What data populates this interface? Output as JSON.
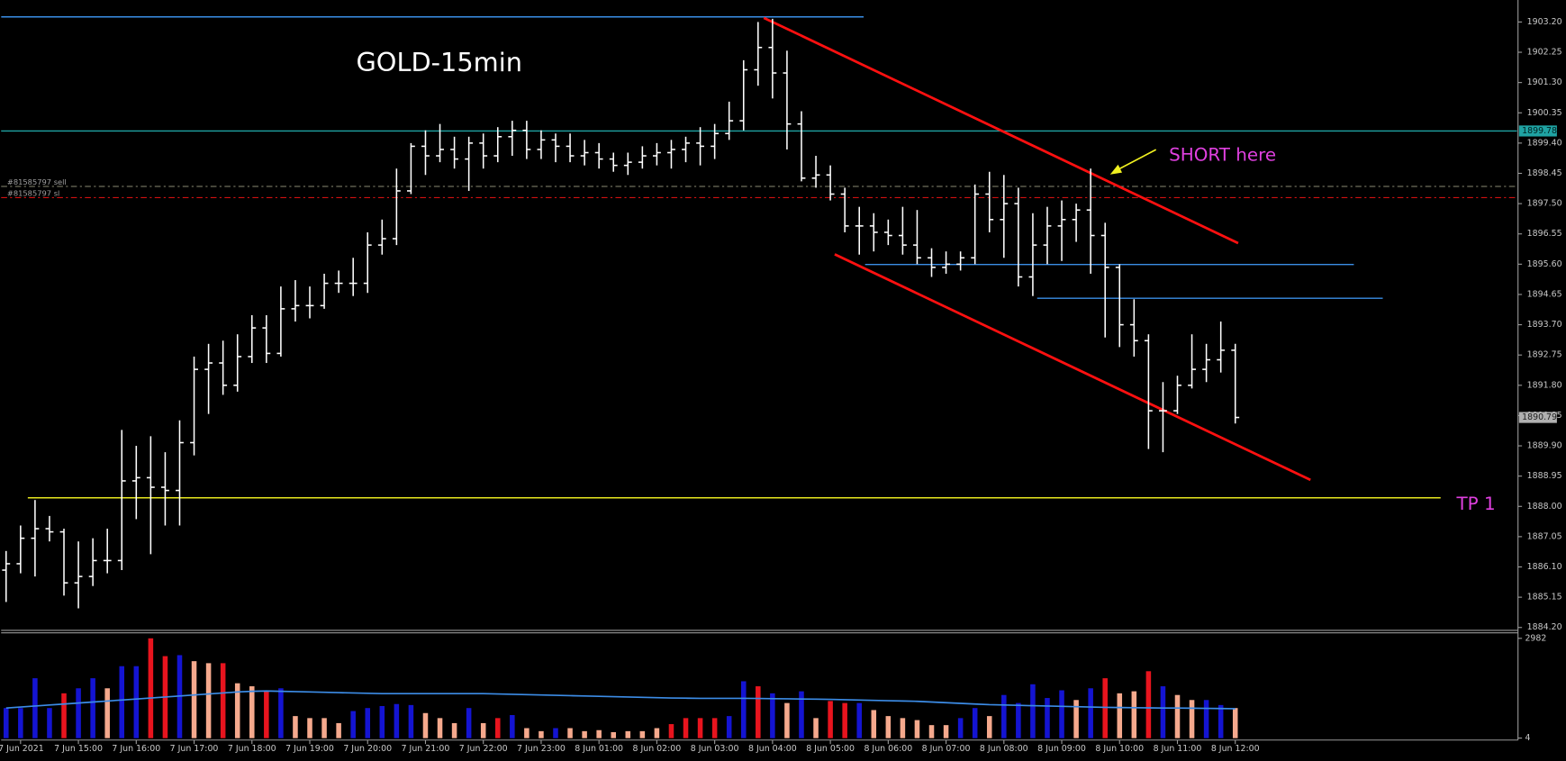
{
  "chart_data": {
    "type": "ohlc",
    "title": "GOLD-15min",
    "open": [
      1886.0,
      1886.2,
      1887.0,
      1887.3,
      1887.2,
      1885.6,
      1885.8,
      1886.3,
      1886.3,
      1888.8,
      1888.9,
      1888.6,
      1888.5,
      1890.0,
      1892.3,
      1892.5,
      1891.8,
      1892.7,
      1893.6,
      1892.8,
      1894.2,
      1894.3,
      1894.3,
      1895.0,
      1895.0,
      1895.0,
      1896.2,
      1896.4,
      1897.9,
      1899.3,
      1899.0,
      1899.2,
      1898.9,
      1899.4,
      1899.0,
      1899.6,
      1899.8,
      1899.2,
      1899.5,
      1899.3,
      1899.0,
      1899.1,
      1898.9,
      1898.7,
      1898.8,
      1899.0,
      1899.1,
      1899.2,
      1899.4,
      1899.3,
      1899.7,
      1900.1,
      1901.7,
      1902.4,
      1901.6,
      1900.0,
      1898.3,
      1898.4,
      1897.8,
      1896.8,
      1896.8,
      1896.6,
      1896.5,
      1896.2,
      1895.8,
      1895.5,
      1895.6,
      1895.8,
      1897.8,
      1897.0,
      1897.5,
      1895.2,
      1896.2,
      1896.8,
      1897.0,
      1897.3,
      1896.5,
      1895.5,
      1893.7,
      1893.2,
      1891.0,
      1891.0,
      1891.8,
      1892.3,
      1892.6,
      1892.9
    ],
    "high": [
      1886.6,
      1887.4,
      1888.2,
      1887.7,
      1887.3,
      1886.9,
      1887.0,
      1887.3,
      1890.4,
      1889.9,
      1890.2,
      1889.7,
      1890.7,
      1892.7,
      1893.1,
      1893.2,
      1893.4,
      1894.0,
      1894.0,
      1894.9,
      1895.1,
      1894.9,
      1895.3,
      1895.4,
      1895.8,
      1896.6,
      1897.0,
      1898.6,
      1899.4,
      1899.8,
      1900.0,
      1899.6,
      1899.6,
      1899.7,
      1899.9,
      1900.1,
      1900.1,
      1899.8,
      1899.7,
      1899.7,
      1899.5,
      1899.4,
      1899.1,
      1899.1,
      1899.3,
      1899.4,
      1899.5,
      1899.6,
      1899.9,
      1900.0,
      1900.7,
      1902.0,
      1903.2,
      1903.3,
      1902.3,
      1900.4,
      1899.0,
      1898.7,
      1898.0,
      1897.4,
      1897.2,
      1897.0,
      1897.4,
      1897.3,
      1896.1,
      1896.0,
      1896.0,
      1898.1,
      1898.5,
      1898.4,
      1898.0,
      1897.2,
      1897.4,
      1897.6,
      1897.5,
      1898.6,
      1896.9,
      1895.6,
      1894.5,
      1893.4,
      1891.9,
      1892.1,
      1893.4,
      1893.1,
      1893.8,
      1893.1
    ],
    "low": [
      1885.0,
      1885.9,
      1885.8,
      1886.9,
      1885.2,
      1884.8,
      1885.5,
      1885.9,
      1886.0,
      1887.6,
      1886.5,
      1887.4,
      1887.4,
      1889.6,
      1890.9,
      1891.5,
      1891.6,
      1892.5,
      1892.5,
      1892.7,
      1893.8,
      1893.9,
      1894.2,
      1894.7,
      1894.6,
      1894.7,
      1895.9,
      1896.2,
      1897.8,
      1898.4,
      1898.8,
      1898.6,
      1897.9,
      1898.6,
      1898.8,
      1899.0,
      1898.9,
      1898.9,
      1898.8,
      1898.8,
      1898.7,
      1898.6,
      1898.5,
      1898.4,
      1898.6,
      1898.7,
      1898.6,
      1898.8,
      1898.7,
      1898.9,
      1899.5,
      1899.8,
      1901.2,
      1900.8,
      1899.2,
      1898.2,
      1898.0,
      1897.6,
      1896.6,
      1895.9,
      1896.0,
      1896.2,
      1895.9,
      1895.6,
      1895.2,
      1895.3,
      1895.4,
      1895.6,
      1896.6,
      1895.8,
      1894.9,
      1894.6,
      1895.6,
      1895.7,
      1896.3,
      1895.3,
      1893.3,
      1893.0,
      1892.7,
      1889.8,
      1889.7,
      1890.9,
      1891.7,
      1891.9,
      1892.2,
      1890.6
    ],
    "close": [
      1886.2,
      1887.0,
      1887.3,
      1887.2,
      1885.6,
      1885.8,
      1886.3,
      1886.3,
      1888.8,
      1888.9,
      1888.6,
      1888.5,
      1890.0,
      1892.3,
      1892.5,
      1891.8,
      1892.7,
      1893.6,
      1892.8,
      1894.2,
      1894.3,
      1894.3,
      1895.0,
      1895.0,
      1895.0,
      1896.2,
      1896.4,
      1897.9,
      1899.3,
      1899.0,
      1899.2,
      1898.9,
      1899.4,
      1899.0,
      1899.6,
      1899.8,
      1899.2,
      1899.5,
      1899.3,
      1899.0,
      1899.1,
      1898.9,
      1898.7,
      1898.8,
      1899.0,
      1899.1,
      1899.2,
      1899.4,
      1899.3,
      1899.7,
      1900.1,
      1901.7,
      1902.4,
      1901.6,
      1900.0,
      1898.3,
      1898.4,
      1897.8,
      1896.8,
      1896.8,
      1896.6,
      1896.5,
      1896.2,
      1895.8,
      1895.5,
      1895.6,
      1895.8,
      1897.8,
      1897.0,
      1897.5,
      1895.2,
      1896.2,
      1896.8,
      1897.0,
      1897.3,
      1896.5,
      1895.5,
      1893.7,
      1893.2,
      1891.0,
      1891.0,
      1891.8,
      1892.3,
      1892.6,
      1892.9,
      1890.79
    ],
    "color": "#ffffff",
    "xlim": [
      -0.345,
      104.483
    ],
    "xticks": [
      {
        "value": 1,
        "label": "7 Jun 2021"
      },
      {
        "value": 5,
        "label": "7 Jun 15:00"
      },
      {
        "value": 9,
        "label": "7 Jun 16:00"
      },
      {
        "value": 13,
        "label": "7 Jun 17:00"
      },
      {
        "value": 17,
        "label": "7 Jun 18:00"
      },
      {
        "value": 21,
        "label": "7 Jun 19:00"
      },
      {
        "value": 25,
        "label": "7 Jun 20:00"
      },
      {
        "value": 29,
        "label": "7 Jun 21:00"
      },
      {
        "value": 33,
        "label": "7 Jun 22:00"
      },
      {
        "value": 37,
        "label": "7 Jun 23:00"
      },
      {
        "value": 41,
        "label": "8 Jun 01:00"
      },
      {
        "value": 45,
        "label": "8 Jun 02:00"
      },
      {
        "value": 49,
        "label": "8 Jun 03:00"
      },
      {
        "value": 53,
        "label": "8 Jun 04:00"
      },
      {
        "value": 57,
        "label": "8 Jun 05:00"
      },
      {
        "value": 61,
        "label": "8 Jun 06:00"
      },
      {
        "value": 65,
        "label": "8 Jun 07:00"
      },
      {
        "value": 69,
        "label": "8 Jun 08:00"
      },
      {
        "value": 73,
        "label": "8 Jun 09:00"
      },
      {
        "value": 77,
        "label": "8 Jun 10:00"
      },
      {
        "value": 81,
        "label": "8 Jun 11:00"
      },
      {
        "value": 85,
        "label": "8 Jun 12:00"
      }
    ],
    "ylim": [
      1884.11,
      1903.89
    ],
    "yticks": [
      {
        "value": 1884.2,
        "label": "1884.20"
      },
      1885.15,
      {
        "value": 1886.1,
        "label": "1886.10"
      },
      1887.05,
      {
        "value": 1888,
        "label": "1888.00"
      },
      1888.95,
      {
        "value": 1889.9,
        "label": "1889.90"
      },
      1890.85,
      {
        "value": 1891.8,
        "label": "1891.80"
      },
      1892.75,
      {
        "value": 1893.7,
        "label": "1893.70"
      },
      1894.65,
      {
        "value": 1895.6,
        "label": "1895.60"
      },
      1896.55,
      {
        "value": 1897.5,
        "label": "1897.50"
      },
      1898.45,
      {
        "value": 1899.4,
        "label": "1899.40"
      },
      {
        "value": 1900.35,
        "label": "1900.35"
      },
      {
        "value": 1901.3,
        "label": "1901.30"
      },
      1902.25,
      {
        "value": 1903.2,
        "label": "1903.20"
      }
    ],
    "levels": [
      {
        "price": 1903.36,
        "from": -0.34,
        "to": 59.3,
        "color": "#3a8ee6"
      },
      {
        "price": 1899.78,
        "color": "#1fa3a3",
        "axis_label": true
      },
      {
        "price": 1898.04,
        "color": "#8a8a74",
        "dash": true,
        "label": "#81585797 sell"
      },
      {
        "price": 1897.69,
        "color": "#d01010",
        "dash": true,
        "label": "#81585797 sl"
      },
      {
        "price": 1895.59,
        "from": 59.4,
        "to": 93.2,
        "color": "#3a8ee6"
      },
      {
        "price": 1894.53,
        "from": 71.3,
        "to": 95.2,
        "color": "#3a8ee6"
      },
      {
        "price": 1888.27,
        "from": 1.5,
        "to": 99.2,
        "color": "#e6e61e",
        "label": "TP 1"
      }
    ],
    "trendlines": [
      {
        "from": [
          52.4,
          1903.33
        ],
        "to": [
          85.2,
          1896.26
        ],
        "color": "#ff1010"
      },
      {
        "from": [
          57.3,
          1895.91
        ],
        "to": [
          90.2,
          1888.83
        ],
        "color": "#ff1010"
      }
    ],
    "last_price": 1890.79,
    "annotation": "SHORT here",
    "annotation_color": "#e040e0",
    "volume": {
      "values": [
        900,
        900,
        1790,
        900,
        1340,
        1490,
        1790,
        1490,
        2150,
        2150,
        2982,
        2450,
        2480,
        2300,
        2240,
        2240,
        1640,
        1550,
        1400,
        1490,
        660,
        600,
        600,
        450,
        810,
        900,
        960,
        1020,
        990,
        750,
        600,
        450,
        900,
        450,
        600,
        690,
        300,
        210,
        300,
        300,
        210,
        240,
        180,
        210,
        210,
        300,
        420,
        600,
        600,
        600,
        660,
        1700,
        1550,
        1340,
        1050,
        1400,
        600,
        1110,
        1050,
        1050,
        840,
        660,
        600,
        540,
        390,
        390,
        600,
        900,
        660,
        1290,
        1050,
        1610,
        1200,
        1430,
        1140,
        1490,
        1790,
        1340,
        1400,
        2000,
        1550,
        1290,
        1140,
        1140,
        990,
        900
      ],
      "colors": [
        "#1414d2",
        "#1414d2",
        "#1414d2",
        "#1414d2",
        "#e8141e",
        "#1414d2",
        "#1414d2",
        "#f5a98d",
        "#1414d2",
        "#1414d2",
        "#e8141e",
        "#e8141e",
        "#1414d2",
        "#f5a98d",
        "#f5a98d",
        "#e8141e",
        "#f5a98d",
        "#f5a98d",
        "#e8141e",
        "#1414d2",
        "#f5a98d",
        "#f5a98d",
        "#f5a98d",
        "#f5a98d",
        "#1414d2",
        "#1414d2",
        "#1414d2",
        "#1414d2",
        "#1414d2",
        "#f5a98d",
        "#f5a98d",
        "#f5a98d",
        "#1414d2",
        "#f5a98d",
        "#e8141e",
        "#1414d2",
        "#f5a98d",
        "#f5a98d",
        "#1414d2",
        "#f5a98d",
        "#f5a98d",
        "#f5a98d",
        "#f5a98d",
        "#f5a98d",
        "#f5a98d",
        "#f5a98d",
        "#e8141e",
        "#e8141e",
        "#e8141e",
        "#e8141e",
        "#1414d2",
        "#1414d2",
        "#e8141e",
        "#1414d2",
        "#f5a98d",
        "#1414d2",
        "#f5a98d",
        "#e8141e",
        "#e8141e",
        "#1414d2",
        "#f5a98d",
        "#f5a98d",
        "#f5a98d",
        "#f5a98d",
        "#f5a98d",
        "#f5a98d",
        "#1414d2",
        "#1414d2",
        "#f5a98d",
        "#1414d2",
        "#1414d2",
        "#1414d2",
        "#1414d2",
        "#1414d2",
        "#f5a98d",
        "#1414d2",
        "#e8141e",
        "#f5a98d",
        "#f5a98d",
        "#e8141e",
        "#1414d2",
        "#f5a98d",
        "#f5a98d",
        "#1414d2",
        "#1414d2",
        "#f5a98d"
      ],
      "ma": [
        900,
        930,
        960,
        990,
        1020,
        1050,
        1080,
        1110,
        1140,
        1170,
        1200,
        1230,
        1260,
        1290,
        1320,
        1350,
        1380,
        1400,
        1410,
        1400,
        1390,
        1380,
        1370,
        1360,
        1350,
        1340,
        1330,
        1330,
        1330,
        1330,
        1330,
        1330,
        1330,
        1330,
        1320,
        1310,
        1300,
        1290,
        1280,
        1270,
        1260,
        1250,
        1240,
        1230,
        1220,
        1210,
        1200,
        1195,
        1190,
        1190,
        1190,
        1190,
        1185,
        1180,
        1175,
        1170,
        1165,
        1160,
        1150,
        1140,
        1130,
        1120,
        1110,
        1100,
        1080,
        1060,
        1040,
        1020,
        1000,
        990,
        980,
        970,
        960,
        950,
        940,
        930,
        920,
        915,
        910,
        905,
        900,
        900,
        895,
        890,
        885,
        880
      ],
      "ma_color": "#3c8ce6",
      "ylim": [
        -56,
        3161
      ],
      "yticks": [
        4,
        2982
      ]
    }
  }
}
